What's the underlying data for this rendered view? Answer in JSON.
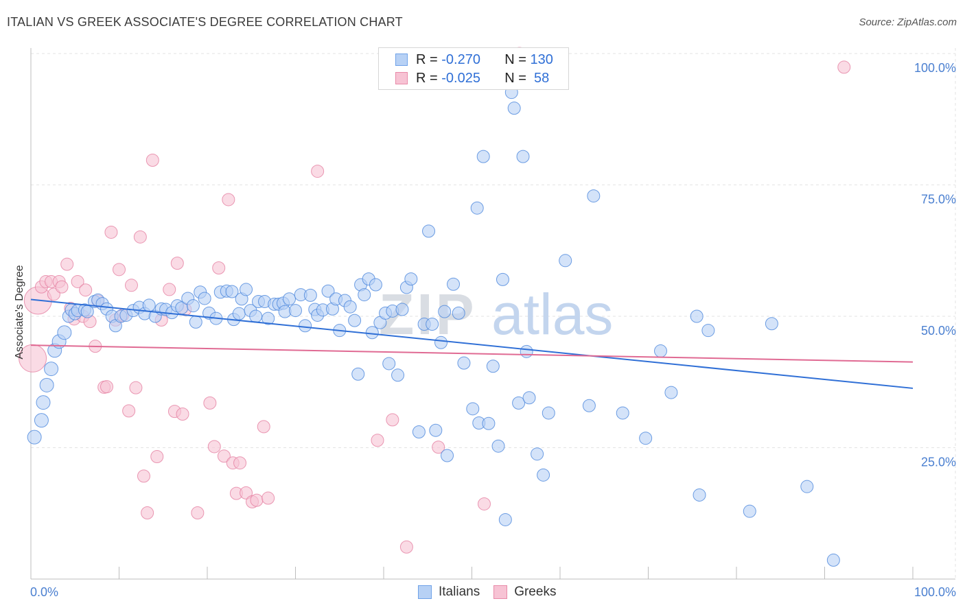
{
  "title": "ITALIAN VS GREEK ASSOCIATE'S DEGREE CORRELATION CHART",
  "source": "Source: ZipAtlas.com",
  "watermark": {
    "zip": "ZIP",
    "atlas": "atlas"
  },
  "legend": {
    "rows": [
      {
        "r_label": "R =",
        "r_value": "-0.270",
        "n_label": "N =",
        "n_value": "130",
        "color": "#6fa2e8",
        "fill": "#b7d1f5"
      },
      {
        "r_label": "R =",
        "r_value": "-0.025",
        "n_label": "N =",
        "n_value": " 58",
        "color": "#e88aa8",
        "fill": "#f7c3d4"
      }
    ]
  },
  "bottom_legend": [
    {
      "label": "Italians",
      "color": "#6fa2e8",
      "fill": "#b7d1f5"
    },
    {
      "label": "Greeks",
      "color": "#e88aa8",
      "fill": "#f7c3d4"
    }
  ],
  "chart_data": {
    "type": "scatter",
    "title": "ITALIAN VS GREEK ASSOCIATE'S DEGREE CORRELATION CHART",
    "xlabel": "",
    "ylabel": "Associate's Degree",
    "xlim": [
      0,
      100
    ],
    "ylim": [
      0,
      100
    ],
    "x_tick_labels": {
      "left": "0.0%",
      "right": "100.0%"
    },
    "y_ticks": [
      {
        "value": 100,
        "label": "100.0%"
      },
      {
        "value": 75,
        "label": "75.0%"
      },
      {
        "value": 50,
        "label": "50.0%"
      },
      {
        "value": 25,
        "label": "25.0%"
      }
    ],
    "grid": true,
    "series": [
      {
        "name": "Italians",
        "color": "#4a86dc",
        "fill": "#b7d1f5",
        "trend": {
          "x0": 0,
          "y0": 53.2,
          "x1": 100,
          "y1": 36.3,
          "color": "#2f6fd6"
        },
        "points": [
          [
            0.4,
            27.0
          ],
          [
            1.2,
            30.2
          ],
          [
            1.4,
            33.6
          ],
          [
            1.8,
            36.9
          ],
          [
            2.3,
            40.0
          ],
          [
            2.7,
            43.5
          ],
          [
            3.2,
            45.2
          ],
          [
            3.8,
            46.9
          ],
          [
            4.3,
            50.0
          ],
          [
            4.6,
            51.2
          ],
          [
            5.0,
            50.5
          ],
          [
            5.3,
            51.1
          ],
          [
            6.1,
            51.2
          ],
          [
            6.4,
            50.9
          ],
          [
            7.2,
            52.8
          ],
          [
            7.6,
            53.1
          ],
          [
            8.1,
            52.4
          ],
          [
            8.6,
            51.4
          ],
          [
            9.2,
            50.0
          ],
          [
            9.6,
            48.2
          ],
          [
            10.2,
            50.0
          ],
          [
            10.8,
            50.2
          ],
          [
            11.6,
            51.1
          ],
          [
            12.3,
            51.7
          ],
          [
            12.9,
            50.5
          ],
          [
            13.4,
            52.1
          ],
          [
            14.1,
            50.0
          ],
          [
            14.8,
            51.4
          ],
          [
            15.3,
            51.3
          ],
          [
            16.0,
            50.7
          ],
          [
            16.6,
            52.0
          ],
          [
            17.1,
            51.6
          ],
          [
            17.8,
            53.4
          ],
          [
            18.4,
            52.0
          ],
          [
            18.7,
            48.9
          ],
          [
            19.2,
            54.6
          ],
          [
            19.7,
            53.4
          ],
          [
            20.2,
            50.6
          ],
          [
            21.0,
            49.6
          ],
          [
            21.5,
            54.6
          ],
          [
            22.2,
            54.8
          ],
          [
            22.8,
            54.7
          ],
          [
            23.0,
            49.4
          ],
          [
            23.6,
            50.5
          ],
          [
            23.9,
            53.3
          ],
          [
            24.4,
            55.1
          ],
          [
            24.9,
            51.1
          ],
          [
            25.5,
            50.0
          ],
          [
            25.8,
            52.8
          ],
          [
            26.5,
            52.8
          ],
          [
            26.9,
            49.6
          ],
          [
            27.6,
            52.3
          ],
          [
            28.1,
            52.3
          ],
          [
            28.6,
            52.5
          ],
          [
            28.8,
            50.9
          ],
          [
            29.3,
            53.3
          ],
          [
            30.0,
            51.1
          ],
          [
            30.6,
            54.1
          ],
          [
            31.1,
            48.2
          ],
          [
            31.7,
            54.0
          ],
          [
            32.2,
            51.3
          ],
          [
            32.5,
            50.2
          ],
          [
            33.1,
            51.2
          ],
          [
            33.7,
            54.8
          ],
          [
            34.2,
            51.4
          ],
          [
            34.6,
            53.3
          ],
          [
            35.0,
            47.3
          ],
          [
            35.6,
            53.0
          ],
          [
            36.2,
            51.8
          ],
          [
            36.7,
            49.2
          ],
          [
            37.1,
            39.0
          ],
          [
            37.4,
            56.0
          ],
          [
            37.8,
            54.1
          ],
          [
            38.3,
            57.1
          ],
          [
            38.7,
            46.9
          ],
          [
            39.1,
            56.0
          ],
          [
            39.6,
            48.8
          ],
          [
            40.2,
            50.6
          ],
          [
            40.6,
            41.0
          ],
          [
            41.0,
            51.0
          ],
          [
            41.6,
            38.8
          ],
          [
            42.1,
            51.3
          ],
          [
            42.6,
            55.5
          ],
          [
            43.1,
            57.1
          ],
          [
            44.0,
            28.0
          ],
          [
            44.6,
            48.5
          ],
          [
            45.1,
            66.2
          ],
          [
            45.5,
            48.5
          ],
          [
            45.9,
            28.3
          ],
          [
            46.5,
            45.0
          ],
          [
            46.9,
            50.9
          ],
          [
            47.2,
            23.5
          ],
          [
            47.9,
            56.1
          ],
          [
            48.5,
            50.6
          ],
          [
            49.1,
            41.1
          ],
          [
            50.1,
            32.4
          ],
          [
            50.6,
            70.6
          ],
          [
            50.8,
            29.7
          ],
          [
            51.3,
            80.4
          ],
          [
            51.9,
            29.6
          ],
          [
            52.4,
            40.5
          ],
          [
            53.0,
            25.3
          ],
          [
            53.5,
            57.0
          ],
          [
            53.8,
            11.3
          ],
          [
            54.5,
            92.6
          ],
          [
            54.8,
            89.6
          ],
          [
            55.3,
            33.5
          ],
          [
            55.8,
            80.4
          ],
          [
            56.2,
            43.3
          ],
          [
            56.5,
            34.5
          ],
          [
            57.4,
            23.8
          ],
          [
            58.1,
            19.8
          ],
          [
            58.7,
            31.6
          ],
          [
            60.6,
            60.6
          ],
          [
            63.3,
            33.0
          ],
          [
            63.8,
            72.9
          ],
          [
            67.1,
            31.6
          ],
          [
            69.7,
            26.8
          ],
          [
            71.4,
            43.4
          ],
          [
            72.6,
            35.5
          ],
          [
            75.5,
            50.0
          ],
          [
            75.8,
            16.0
          ],
          [
            76.8,
            47.3
          ],
          [
            81.5,
            12.9
          ],
          [
            84.0,
            48.6
          ],
          [
            88.0,
            17.6
          ],
          [
            91.0,
            3.6
          ]
        ]
      },
      {
        "name": "Greeks",
        "color": "#e57fa1",
        "fill": "#f7c3d4",
        "trend": {
          "x0": 0,
          "y0": 44.5,
          "x1": 100,
          "y1": 41.3,
          "color": "#e06a93"
        },
        "points": [
          [
            0.2,
            42.0
          ],
          [
            0.8,
            53.0
          ],
          [
            1.2,
            55.6
          ],
          [
            1.7,
            56.6
          ],
          [
            2.3,
            56.6
          ],
          [
            2.6,
            54.2
          ],
          [
            3.2,
            56.6
          ],
          [
            3.5,
            55.6
          ],
          [
            4.1,
            59.9
          ],
          [
            4.5,
            51.5
          ],
          [
            4.9,
            49.5
          ],
          [
            5.3,
            56.6
          ],
          [
            5.9,
            50.0
          ],
          [
            6.2,
            55.0
          ],
          [
            6.7,
            49.0
          ],
          [
            7.3,
            44.3
          ],
          [
            7.6,
            52.9
          ],
          [
            8.3,
            36.5
          ],
          [
            8.6,
            36.6
          ],
          [
            9.1,
            66.0
          ],
          [
            9.6,
            49.3
          ],
          [
            10.0,
            58.9
          ],
          [
            10.4,
            50.2
          ],
          [
            11.1,
            32.0
          ],
          [
            11.4,
            55.9
          ],
          [
            11.9,
            36.4
          ],
          [
            12.4,
            65.1
          ],
          [
            12.8,
            19.6
          ],
          [
            13.2,
            12.6
          ],
          [
            13.8,
            79.7
          ],
          [
            14.3,
            23.3
          ],
          [
            14.8,
            49.3
          ],
          [
            15.7,
            55.1
          ],
          [
            16.3,
            31.9
          ],
          [
            16.6,
            60.1
          ],
          [
            17.2,
            31.4
          ],
          [
            17.5,
            51.3
          ],
          [
            18.9,
            12.6
          ],
          [
            20.3,
            33.5
          ],
          [
            20.8,
            25.2
          ],
          [
            21.3,
            59.2
          ],
          [
            21.9,
            23.4
          ],
          [
            22.4,
            72.2
          ],
          [
            22.9,
            22.1
          ],
          [
            23.3,
            16.3
          ],
          [
            23.7,
            22.1
          ],
          [
            24.4,
            16.4
          ],
          [
            25.1,
            14.7
          ],
          [
            25.6,
            15.0
          ],
          [
            26.4,
            29.0
          ],
          [
            26.9,
            15.4
          ],
          [
            32.5,
            77.6
          ],
          [
            39.3,
            26.4
          ],
          [
            41.0,
            30.3
          ],
          [
            42.6,
            6.1
          ],
          [
            46.2,
            25.1
          ],
          [
            51.4,
            14.3
          ],
          [
            55.4,
            100.0
          ],
          [
            92.2,
            97.4
          ]
        ]
      }
    ]
  }
}
